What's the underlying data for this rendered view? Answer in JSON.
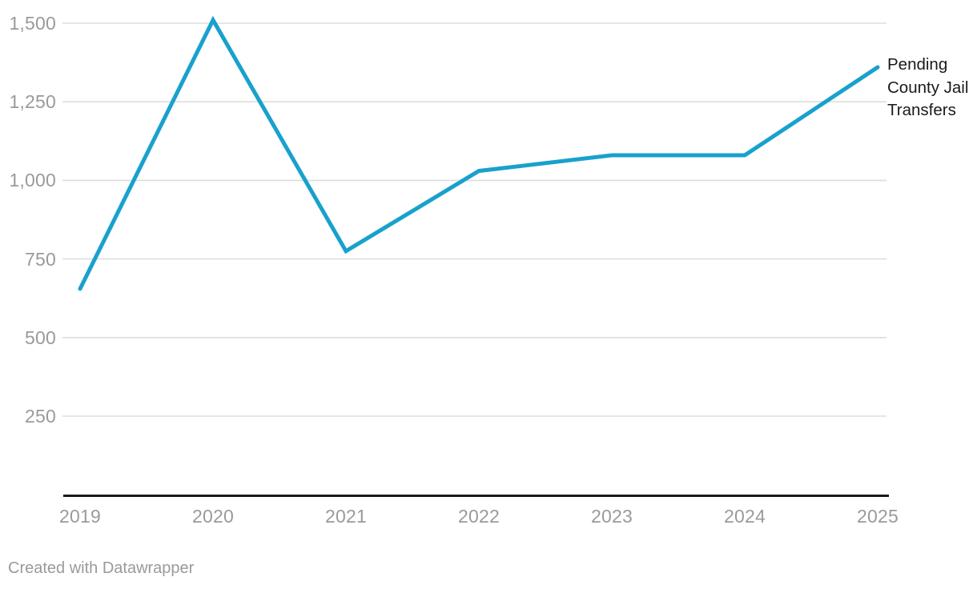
{
  "chart_data": {
    "type": "line",
    "x": [
      "2019",
      "2020",
      "2021",
      "2022",
      "2023",
      "2024",
      "2025"
    ],
    "series": [
      {
        "name": "Pending County Jail Transfers",
        "values": [
          655,
          1510,
          775,
          1030,
          1080,
          1080,
          1360
        ]
      }
    ],
    "title": "",
    "xlabel": "",
    "ylabel": "",
    "ylim": [
      0,
      1572
    ],
    "yticks": [
      250,
      500,
      750,
      1000,
      1250,
      1500
    ],
    "ytick_labels": [
      "250",
      "500",
      "750",
      "1,000",
      "1,250",
      "1,500"
    ],
    "grid": "horizontal-only",
    "legend_position": "right-of-line-end",
    "series_label": "Pending County Jail Transfers",
    "line_color": "#18a1cd"
  },
  "colors": {
    "line": "#18a1cd",
    "grid": "#dddddd",
    "axis": "#1a1a1a",
    "tick_text": "#9a9a9a",
    "label_text": "#1a1a1a",
    "background": "#ffffff"
  },
  "footer": {
    "credit": "Created with Datawrapper"
  }
}
